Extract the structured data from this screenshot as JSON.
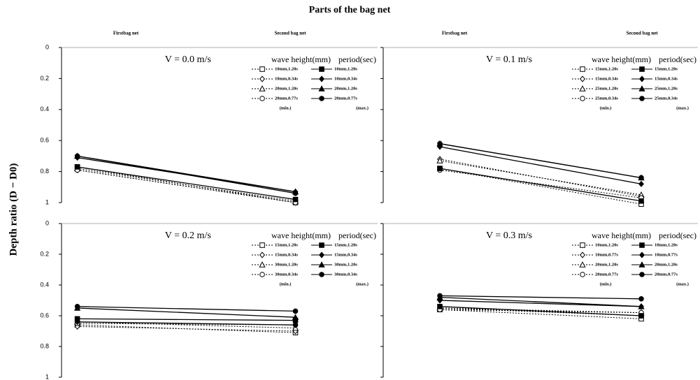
{
  "title": "Parts of the bag net",
  "ylabel": "Depth ratio (D − D0)",
  "chart_data": [
    {
      "type": "line",
      "title": "V = 0.0 m/s",
      "categories": [
        "Firstbag net",
        "Second bag net"
      ],
      "color": "#000000",
      "ylim": [
        0,
        1
      ],
      "yticks": [
        0,
        0.2,
        0.4,
        0.6,
        0.8,
        1
      ],
      "inverted": true,
      "show_tick_labels": true,
      "legend_header": [
        "wave height(mm)",
        "period(sec)"
      ],
      "legend_notes": [
        "(min.)",
        "(max.)"
      ],
      "legend": "upper right",
      "series": [
        {
          "name": "10mm,1.20s",
          "marker": "square",
          "filled": false,
          "dashed": true,
          "values": [
            0.77,
            1.0
          ]
        },
        {
          "name": "10mm,0.34s",
          "marker": "diamond",
          "filled": false,
          "dashed": true,
          "values": [
            0.79,
            1.0
          ]
        },
        {
          "name": "20mm,1.20s",
          "marker": "triangle",
          "filled": false,
          "dashed": true,
          "values": [
            0.78,
            0.99
          ]
        },
        {
          "name": "20mm,0.77s",
          "marker": "circle",
          "filled": false,
          "dashed": true,
          "values": [
            0.79,
            1.0
          ]
        },
        {
          "name": "10mm,1.20s",
          "marker": "square",
          "filled": true,
          "dashed": false,
          "values": [
            0.77,
            0.98
          ]
        },
        {
          "name": "10mm,0.34s",
          "marker": "diamond",
          "filled": true,
          "dashed": false,
          "values": [
            0.71,
            0.93
          ]
        },
        {
          "name": "20mm,1.20s",
          "marker": "triangle",
          "filled": true,
          "dashed": false,
          "values": [
            0.7,
            0.93
          ]
        },
        {
          "name": "20mm,0.77s",
          "marker": "circle",
          "filled": true,
          "dashed": false,
          "values": [
            0.7,
            0.94
          ]
        }
      ]
    },
    {
      "type": "line",
      "title": "V = 0.1 m/s",
      "categories": [
        "Firstbag net",
        "Second bag net"
      ],
      "color": "#000000",
      "ylim": [
        0,
        1
      ],
      "yticks": [
        0,
        0.2,
        0.4,
        0.6,
        0.8,
        1
      ],
      "inverted": true,
      "show_tick_labels": false,
      "legend_header": [
        "wave height(mm)",
        "period(sec)"
      ],
      "legend_notes": [
        "(min.)",
        "(max.)"
      ],
      "legend": "upper right",
      "series": [
        {
          "name": "15mm,1.20s",
          "marker": "square",
          "filled": false,
          "dashed": true,
          "values": [
            0.78,
            1.01
          ]
        },
        {
          "name": "15mm,0.34s",
          "marker": "diamond",
          "filled": false,
          "dashed": true,
          "values": [
            0.72,
            0.96
          ]
        },
        {
          "name": "25mm,1.20s",
          "marker": "triangle",
          "filled": false,
          "dashed": true,
          "values": [
            0.73,
            0.95
          ]
        },
        {
          "name": "25mm,0.34s",
          "marker": "circle",
          "filled": false,
          "dashed": true,
          "values": [
            0.79,
            0.97
          ]
        },
        {
          "name": "15mm,1.20s",
          "marker": "square",
          "filled": true,
          "dashed": false,
          "values": [
            0.78,
            0.99
          ]
        },
        {
          "name": "15mm,0.34s",
          "marker": "diamond",
          "filled": true,
          "dashed": false,
          "values": [
            0.64,
            0.88
          ]
        },
        {
          "name": "25mm,1.20s",
          "marker": "triangle",
          "filled": true,
          "dashed": false,
          "values": [
            0.62,
            0.84
          ]
        },
        {
          "name": "25mm,0.34s",
          "marker": "circle",
          "filled": true,
          "dashed": false,
          "values": [
            0.62,
            0.84
          ]
        }
      ]
    },
    {
      "type": "line",
      "title": "V = 0.2 m/s",
      "categories": [
        null,
        null
      ],
      "color": "#000000",
      "ylim": [
        0,
        1
      ],
      "yticks": [
        0,
        0.2,
        0.4,
        0.6,
        0.8,
        1
      ],
      "inverted": true,
      "show_tick_labels": true,
      "legend_header": [
        "wave height(mm)",
        "period(sec)"
      ],
      "legend_notes": [
        "(min.)",
        "(max.)"
      ],
      "legend": "upper right",
      "series": [
        {
          "name": "15mm,1.20s",
          "marker": "square",
          "filled": false,
          "dashed": true,
          "values": [
            0.66,
            0.71
          ]
        },
        {
          "name": "15mm,0.34s",
          "marker": "diamond",
          "filled": false,
          "dashed": true,
          "values": [
            0.67,
            0.7
          ]
        },
        {
          "name": "30mm,1.20s",
          "marker": "triangle",
          "filled": false,
          "dashed": true,
          "values": [
            0.64,
            0.68
          ]
        },
        {
          "name": "30mm,0.34s",
          "marker": "circle",
          "filled": false,
          "dashed": true,
          "values": [
            0.65,
            0.66
          ]
        },
        {
          "name": "15mm,1.20s",
          "marker": "square",
          "filled": true,
          "dashed": false,
          "values": [
            0.62,
            0.63
          ]
        },
        {
          "name": "15mm,0.34s",
          "marker": "diamond",
          "filled": true,
          "dashed": false,
          "values": [
            0.64,
            0.66
          ]
        },
        {
          "name": "30mm,1.20s",
          "marker": "triangle",
          "filled": true,
          "dashed": false,
          "values": [
            0.55,
            0.61
          ]
        },
        {
          "name": "30mm,0.34s",
          "marker": "circle",
          "filled": true,
          "dashed": false,
          "values": [
            0.54,
            0.57
          ]
        }
      ]
    },
    {
      "type": "line",
      "title": "V = 0.3 m/s",
      "categories": [
        null,
        null
      ],
      "color": "#000000",
      "ylim": [
        0,
        1
      ],
      "yticks": [
        0,
        0.2,
        0.4,
        0.6,
        0.8,
        1
      ],
      "inverted": true,
      "show_tick_labels": false,
      "legend_header": [
        "wave height(mm)",
        "period(sec)"
      ],
      "legend_notes": [
        "(min.)",
        "(max.)"
      ],
      "legend": "upper right",
      "series": [
        {
          "name": "10mm,1.20s",
          "marker": "square",
          "filled": false,
          "dashed": true,
          "values": [
            0.56,
            0.62
          ]
        },
        {
          "name": "10mm,0.77s",
          "marker": "diamond",
          "filled": false,
          "dashed": true,
          "values": [
            0.55,
            0.6
          ]
        },
        {
          "name": "20mm,1.20s",
          "marker": "triangle",
          "filled": false,
          "dashed": true,
          "values": [
            0.55,
            0.58
          ]
        },
        {
          "name": "20mm,0.77s",
          "marker": "circle",
          "filled": false,
          "dashed": true,
          "values": [
            0.56,
            0.58
          ]
        },
        {
          "name": "10mm,1.20s",
          "marker": "square",
          "filled": true,
          "dashed": false,
          "values": [
            0.54,
            0.6
          ]
        },
        {
          "name": "10mm,0.77s",
          "marker": "diamond",
          "filled": true,
          "dashed": false,
          "values": [
            0.5,
            0.54
          ]
        },
        {
          "name": "20mm,1.20s",
          "marker": "triangle",
          "filled": true,
          "dashed": false,
          "values": [
            0.48,
            0.54
          ]
        },
        {
          "name": "20mm,0.77s",
          "marker": "circle",
          "filled": true,
          "dashed": false,
          "values": [
            0.47,
            0.49
          ]
        }
      ]
    }
  ]
}
